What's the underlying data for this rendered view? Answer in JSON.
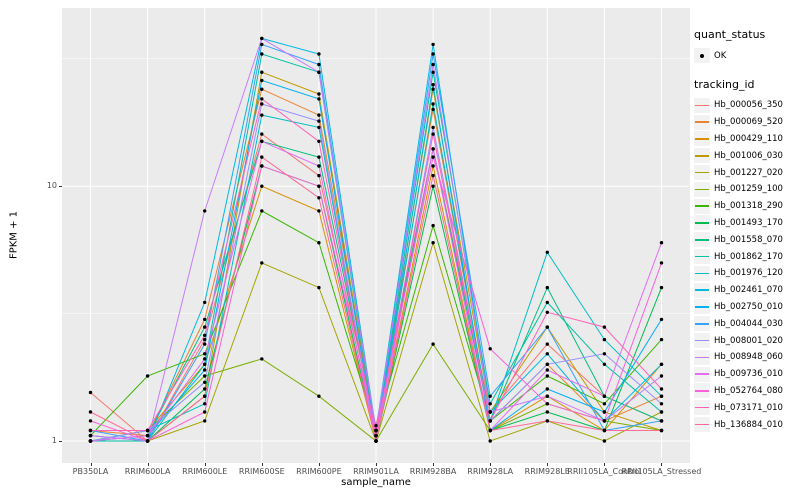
{
  "legend": {
    "quant_status_title": "quant_status",
    "quant_status_label": "OK",
    "tracking_id_title": "tracking_id"
  },
  "chart_data": {
    "type": "line",
    "title": "",
    "xlabel": "sample_name",
    "ylabel": "FPKM + 1",
    "yscale": "log10",
    "ylim": [
      0.82,
      50
    ],
    "yticks": [
      1,
      10
    ],
    "yticks_minor": [
      3.162,
      31.62
    ],
    "grid": true,
    "legend_position": "right",
    "panel_background": "#EBEBEB",
    "gridline_color": "#FFFFFF",
    "point_color": "#000000",
    "categories": [
      "PB350LA",
      "RRIM600LA",
      "RRIM600LE",
      "RRIM600SE",
      "RRIM600PE",
      "RRIM901LA",
      "RRIM928BA",
      "RRIM928LA",
      "RRIM928LE",
      "RRII105LA_Control",
      "RRII105LA_Stressed"
    ],
    "series": [
      {
        "name": "Hb_000056_350",
        "color": "#F8766D",
        "values": [
          1.55,
          1.0,
          2.5,
          16,
          11,
          1.15,
          14,
          1.3,
          2.4,
          1.5,
          1.2
        ]
      },
      {
        "name": "Hb_000069_520",
        "color": "#EA8331",
        "values": [
          1.1,
          1.05,
          3.0,
          24,
          19,
          1.1,
          20,
          1.2,
          2.0,
          1.2,
          1.5
        ]
      },
      {
        "name": "Hb_000429_110",
        "color": "#D89000",
        "values": [
          1.0,
          1.1,
          2.0,
          10,
          8,
          1.0,
          12,
          1.1,
          1.5,
          1.1,
          2.0
        ]
      },
      {
        "name": "Hb_001006_030",
        "color": "#C09B00",
        "values": [
          1.05,
          1.0,
          1.5,
          28,
          23,
          1.05,
          24,
          1.3,
          2.8,
          1.3,
          1.1
        ]
      },
      {
        "name": "Hb_001227_020",
        "color": "#A3A500",
        "values": [
          1.0,
          1.0,
          1.2,
          5,
          4,
          1.0,
          6,
          1.0,
          1.2,
          1.0,
          1.3
        ]
      },
      {
        "name": "Hb_001259_100",
        "color": "#7CAE00",
        "values": [
          1.0,
          1.1,
          1.8,
          2.1,
          1.5,
          1.0,
          2.4,
          1.1,
          1.4,
          1.2,
          1.1
        ]
      },
      {
        "name": "Hb_001318_290",
        "color": "#39B600",
        "values": [
          1.05,
          1.8,
          2.2,
          8,
          6,
          1.1,
          7,
          1.2,
          1.8,
          1.4,
          2.5
        ]
      },
      {
        "name": "Hb_001493_170",
        "color": "#00BB4E",
        "values": [
          1.0,
          1.0,
          1.6,
          12,
          10,
          1.0,
          10,
          1.1,
          1.3,
          1.1,
          4.0
        ]
      },
      {
        "name": "Hb_001558_070",
        "color": "#00BF7D",
        "values": [
          1.0,
          1.05,
          2.8,
          15,
          13,
          1.1,
          14,
          1.2,
          4.0,
          1.5,
          1.2
        ]
      },
      {
        "name": "Hb_001862_170",
        "color": "#00C1A3",
        "values": [
          1.0,
          1.0,
          2.0,
          33,
          28,
          1.05,
          28,
          1.4,
          3.5,
          2.0,
          1.3
        ]
      },
      {
        "name": "Hb_001976_120",
        "color": "#00BFC4",
        "values": [
          1.0,
          1.1,
          1.4,
          19,
          17,
          1.0,
          21,
          1.2,
          5.5,
          2.5,
          1.5
        ]
      },
      {
        "name": "Hb_002461_070",
        "color": "#00BAE0",
        "values": [
          1.05,
          1.0,
          3.5,
          38,
          33,
          1.1,
          36,
          1.3,
          2.2,
          1.2,
          2.0
        ]
      },
      {
        "name": "Hb_002750_010",
        "color": "#00B0F6",
        "values": [
          1.0,
          1.05,
          1.9,
          26,
          22,
          1.0,
          25,
          1.1,
          1.6,
          1.3,
          3.0
        ]
      },
      {
        "name": "Hb_004044_030",
        "color": "#35A2FF",
        "values": [
          1.1,
          1.0,
          2.4,
          36,
          30,
          1.05,
          33,
          1.5,
          2.8,
          1.1,
          1.2
        ]
      },
      {
        "name": "Hb_008001_020",
        "color": "#9590FF",
        "values": [
          1.0,
          1.1,
          1.7,
          21,
          18,
          1.0,
          17,
          1.2,
          2.0,
          2.2,
          1.4
        ]
      },
      {
        "name": "Hb_008948_060",
        "color": "#C77CFF",
        "values": [
          1.05,
          1.0,
          8.0,
          38,
          28,
          1.1,
          30,
          1.3,
          1.5,
          1.2,
          1.8
        ]
      },
      {
        "name": "Hb_009736_010",
        "color": "#E76BF3",
        "values": [
          1.0,
          1.05,
          2.1,
          15,
          12,
          1.0,
          14,
          1.1,
          1.9,
          1.5,
          6.0
        ]
      },
      {
        "name": "Hb_052764_080",
        "color": "#FA62DB",
        "values": [
          1.2,
          1.0,
          1.3,
          12,
          10,
          1.1,
          13,
          2.3,
          1.4,
          1.2,
          5.0
        ]
      },
      {
        "name": "Hb_073171_010",
        "color": "#FF62BC",
        "values": [
          1.1,
          1.1,
          2.6,
          22,
          15,
          1.05,
          16,
          1.2,
          3.2,
          2.8,
          1.6
        ]
      },
      {
        "name": "Hb_136884_010",
        "color": "#FF6A98",
        "values": [
          1.3,
          1.0,
          1.5,
          13,
          9,
          1.0,
          11,
          1.1,
          1.2,
          1.1,
          1.1
        ]
      }
    ]
  }
}
